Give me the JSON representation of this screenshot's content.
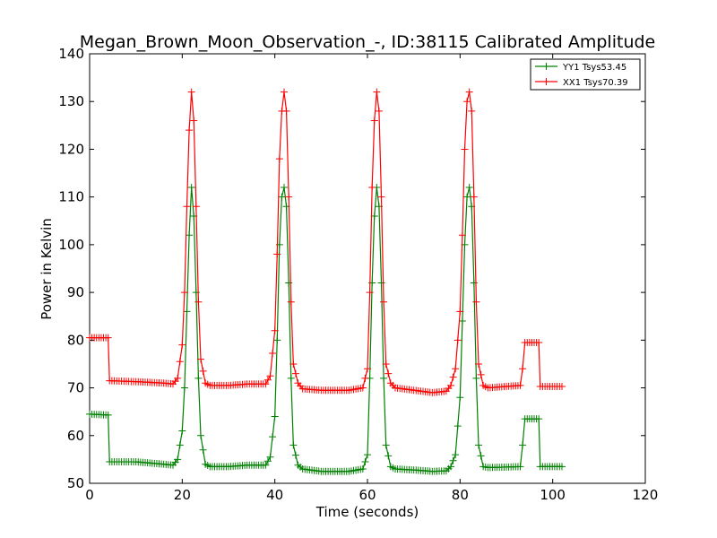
{
  "chart_data": {
    "type": "line",
    "title": "Megan_Brown_Moon_Observation_-, ID:38115 Calibrated Amplitude",
    "xlabel": "Time (seconds)",
    "ylabel": "Power in Kelvin",
    "xlim": [
      0,
      120
    ],
    "ylim": [
      50,
      140
    ],
    "xticks": [
      0,
      20,
      40,
      60,
      80,
      100,
      120
    ],
    "yticks": [
      50,
      60,
      70,
      80,
      90,
      100,
      110,
      120,
      130,
      140
    ],
    "grid": false,
    "legend_position": "top-right",
    "marker": "+",
    "series": [
      {
        "name": "YY1 Tsys53.45",
        "color": "#008000",
        "x": [
          0,
          4,
          4.3,
          10,
          16,
          18,
          19,
          20,
          20.5,
          21,
          21.5,
          22,
          22.5,
          23,
          23.5,
          24,
          25,
          26,
          30,
          34,
          38,
          39,
          40,
          40.5,
          41,
          41.5,
          42,
          42.5,
          43,
          43.5,
          44,
          45,
          46,
          50,
          56,
          59,
          60,
          60.5,
          61,
          61.5,
          62,
          62.5,
          63,
          63.5,
          64,
          65,
          66,
          70,
          74,
          77,
          78,
          79,
          80,
          80.5,
          81,
          81.5,
          82,
          82.5,
          83,
          83.5,
          84,
          85,
          86,
          90,
          93,
          93.5,
          94,
          97,
          97.3,
          102
        ],
        "y": [
          64.5,
          64.3,
          54.5,
          54.5,
          54,
          53.8,
          55,
          61,
          70,
          86,
          102,
          112,
          106,
          90,
          72,
          60,
          54,
          53.5,
          53.5,
          53.8,
          53.8,
          55.5,
          64,
          80,
          100,
          110,
          112,
          108,
          92,
          72,
          58,
          53.8,
          53,
          52.5,
          52.5,
          53,
          56,
          72,
          92,
          106,
          112,
          108,
          92,
          72,
          58,
          53.5,
          53,
          52.8,
          52.5,
          52.6,
          53.5,
          56,
          68,
          84,
          100,
          110,
          112,
          108,
          92,
          72,
          58,
          53.5,
          53.3,
          53.4,
          53.5,
          58,
          63.5,
          63.5,
          53.5,
          53.5
        ]
      },
      {
        "name": "XX1 Tsys70.39",
        "color": "#ff0000",
        "x": [
          0,
          4,
          4.3,
          10,
          16,
          18,
          19,
          20,
          20.5,
          21,
          21.5,
          22,
          22.5,
          23,
          23.5,
          24,
          25,
          26,
          30,
          34,
          38,
          39,
          40,
          40.5,
          41,
          41.5,
          42,
          42.5,
          43,
          43.5,
          44,
          45,
          46,
          50,
          56,
          59,
          60,
          60.5,
          61,
          61.5,
          62,
          62.5,
          63,
          63.5,
          64,
          65,
          66,
          70,
          74,
          77,
          78,
          79,
          80,
          80.5,
          81,
          81.5,
          82,
          82.5,
          83,
          83.5,
          84,
          85,
          86,
          90,
          93,
          93.5,
          94,
          97,
          97.3,
          102
        ],
        "y": [
          80.5,
          80.5,
          71.5,
          71.3,
          71,
          70.8,
          72,
          79,
          90,
          108,
          124,
          132,
          126,
          108,
          88,
          76,
          71,
          70.5,
          70.5,
          70.8,
          70.8,
          72.5,
          82,
          98,
          118,
          128,
          132,
          128,
          110,
          88,
          75,
          71,
          69.8,
          69.5,
          69.5,
          70,
          74,
          90,
          112,
          126,
          132,
          128,
          110,
          88,
          75,
          71,
          70,
          69.5,
          69,
          69.3,
          70.5,
          74,
          86,
          102,
          120,
          130,
          132,
          128,
          110,
          88,
          75,
          70.5,
          70,
          70.3,
          70.5,
          74,
          79.5,
          79.5,
          70.3,
          70.3
        ]
      }
    ]
  }
}
